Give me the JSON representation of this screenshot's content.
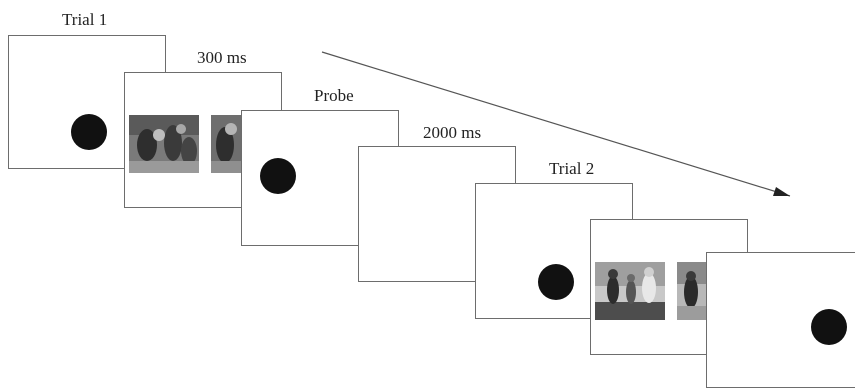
{
  "labels": {
    "trial1": "Trial 1",
    "fixation1": "300 ms",
    "probe": "Probe",
    "iti": "2000 ms",
    "trial2": "Trial 2"
  },
  "colors": {
    "frame_border": "#6d6d6d",
    "dot": "#111111",
    "arrow": "#555555",
    "photo_dark": "#3a3a3a",
    "photo_mid": "#8a8a8a",
    "photo_light": "#cfcfcf"
  },
  "icons": {
    "fixation_dot": "black-circle",
    "scene_photo": "grayscale-photo"
  }
}
